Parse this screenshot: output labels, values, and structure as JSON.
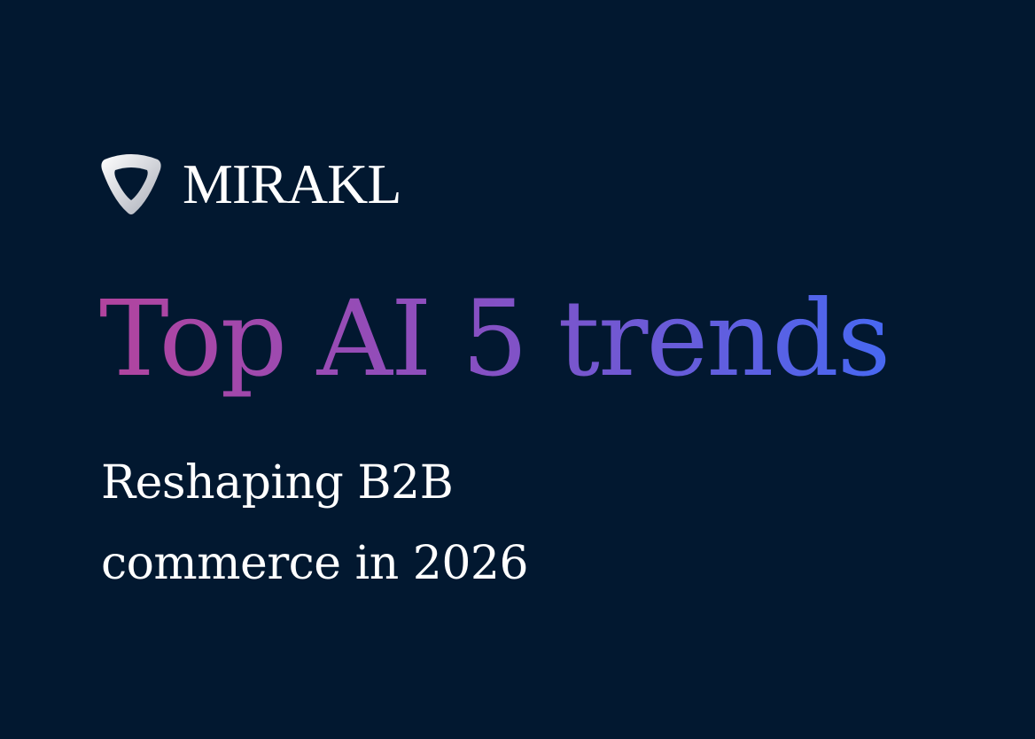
{
  "brand": {
    "name": "MIRAKL"
  },
  "headline": "Top AI 5 trends",
  "subtitle": {
    "line1": "Reshaping B2B",
    "line2": "commerce in 2026"
  },
  "colors": {
    "background": "#021830",
    "gradient_start": "#b2449e",
    "gradient_end": "#4768f2",
    "text": "#ffffff"
  }
}
